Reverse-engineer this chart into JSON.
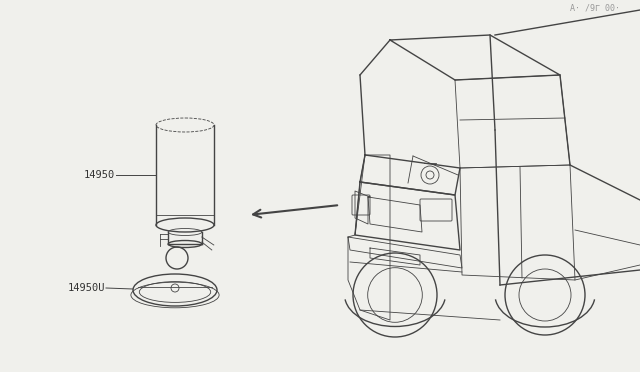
{
  "bg_color": "#f0f0ec",
  "line_color": "#444444",
  "lw_main": 1.0,
  "lw_thin": 0.6,
  "label_fontsize": 7.5,
  "label_color": "#333333",
  "footnote": "A· /9Γ 00·",
  "footnote_fontsize": 6.0,
  "footnote_color": "#999999"
}
